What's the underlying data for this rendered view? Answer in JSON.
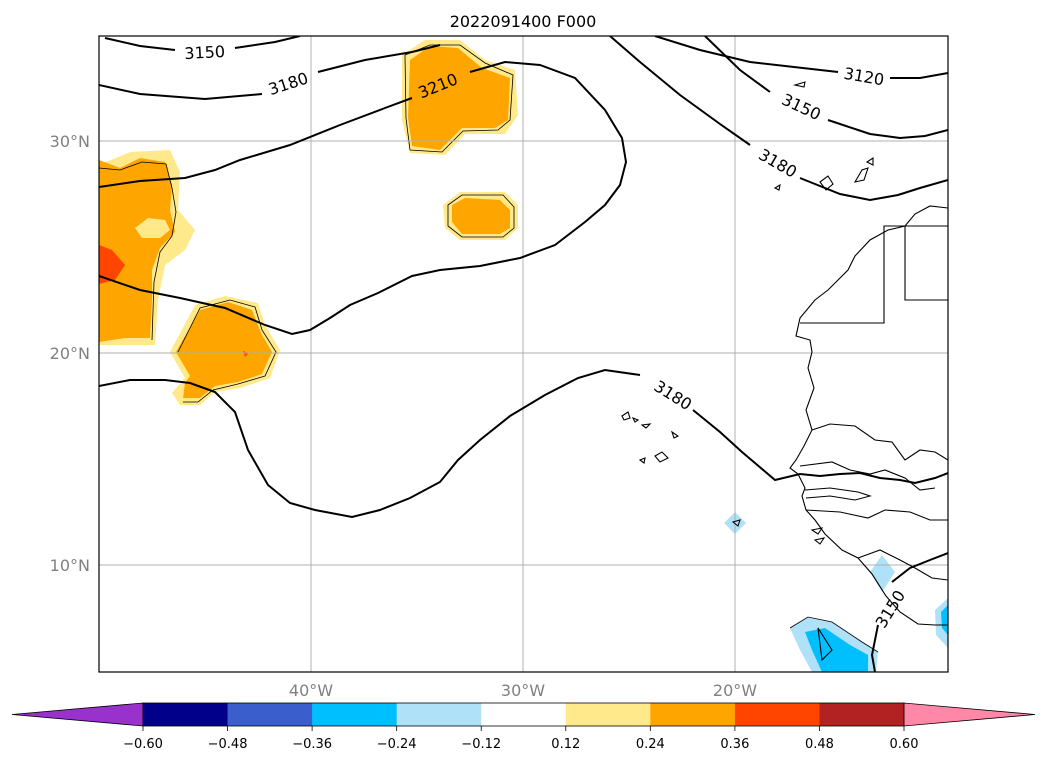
{
  "title": "2022091400 F000",
  "map": {
    "lat_labels": [
      "30°N",
      "20°N",
      "10°N"
    ],
    "lon_labels": [
      "40°W",
      "30°W",
      "20°W"
    ],
    "contour_labels": [
      "3150",
      "3180",
      "3210",
      "3120",
      "3150",
      "3180",
      "3180",
      "3150"
    ]
  },
  "colorbar": {
    "ticks": [
      "−0.60",
      "−0.48",
      "−0.36",
      "−0.24",
      "−0.12",
      "0.12",
      "0.24",
      "0.36",
      "0.48",
      "0.60"
    ],
    "colors": [
      "#9932cc",
      "#00008b",
      "#3a5fcd",
      "#00bfff",
      "#afe1f8",
      "#ffffff",
      "#ffe98a",
      "#ffa500",
      "#ff4500",
      "#b22222",
      "#ff87a8"
    ]
  },
  "colors": {
    "frame": "#000000",
    "grid": "#b0b0b0",
    "coast": "#000000"
  }
}
